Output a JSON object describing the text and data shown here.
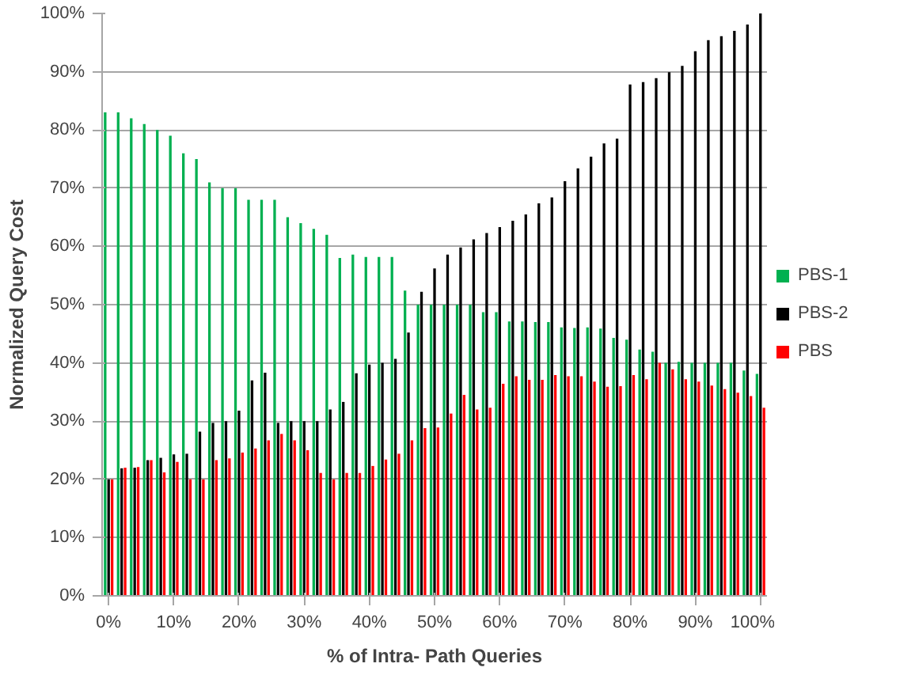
{
  "chart_data": {
    "type": "bar",
    "xlabel": "% of Intra- Path Queries",
    "ylabel": "Normalized Query Cost",
    "categories": [
      "0%",
      null,
      null,
      null,
      null,
      "10%",
      null,
      null,
      null,
      null,
      "20%",
      null,
      null,
      null,
      null,
      "30%",
      null,
      null,
      null,
      null,
      "40%",
      null,
      null,
      null,
      null,
      "50%",
      null,
      null,
      null,
      null,
      "60%",
      null,
      null,
      null,
      null,
      "70%",
      null,
      null,
      null,
      null,
      "80%",
      null,
      null,
      null,
      null,
      "90%",
      null,
      null,
      null,
      null,
      "100%"
    ],
    "series": [
      {
        "name": "PBS-1",
        "color": "#00b050",
        "values": [
          83,
          83,
          82,
          81,
          80,
          79,
          76,
          75,
          71,
          70,
          70,
          68,
          68,
          68,
          65,
          64,
          63,
          62,
          58,
          58.6,
          58.2,
          58.2,
          58.2,
          52.4,
          50,
          50,
          50,
          50,
          50,
          48.7,
          48.7,
          47.1,
          47.1,
          47,
          47,
          46.1,
          46,
          46.1,
          45.9,
          44.3,
          44,
          42.3,
          41.9,
          40,
          40.2,
          40,
          40,
          40,
          40,
          38.7,
          38.1
        ]
      },
      {
        "name": "PBS-2",
        "color": "#000000",
        "values": [
          20,
          21.9,
          22,
          23.3,
          23.7,
          24.3,
          24.4,
          28.2,
          29.7,
          30,
          31.8,
          37,
          38.3,
          29.7,
          30,
          30,
          30,
          32,
          33.3,
          38.2,
          39.7,
          40,
          40.7,
          45.2,
          52.2,
          56.2,
          58.6,
          59.8,
          61.2,
          62.3,
          63.3,
          64.4,
          65.5,
          67.4,
          68.4,
          71.2,
          73.4,
          75.4,
          77.7,
          78.5,
          87.8,
          88.2,
          88.9,
          89.9,
          91,
          93.5,
          95.4,
          96.1,
          97,
          98.1,
          100
        ]
      },
      {
        "name": "PBS",
        "color": "#ff0000",
        "values": [
          20,
          22,
          22.1,
          23.3,
          21.2,
          23,
          20,
          20,
          23.3,
          23.6,
          24.6,
          25.3,
          26.7,
          27.8,
          26.7,
          25,
          21.1,
          20,
          21.1,
          21.1,
          22.3,
          23.4,
          24.4,
          26.7,
          28.8,
          28.9,
          31.3,
          34.5,
          32,
          32.3,
          36.4,
          37.7,
          37.1,
          37.1,
          37.9,
          37.7,
          37.7,
          36.8,
          35.9,
          36,
          37.9,
          37.2,
          40,
          38.9,
          37.2,
          36.8,
          36.1,
          35.5,
          34.9,
          34.3,
          32.3
        ]
      }
    ],
    "ylim": [
      0,
      100
    ],
    "yticks": [
      {
        "value": 0,
        "label": "0%"
      },
      {
        "value": 10,
        "label": "10%"
      },
      {
        "value": 20,
        "label": "20%"
      },
      {
        "value": 30,
        "label": "30%"
      },
      {
        "value": 40,
        "label": "40%"
      },
      {
        "value": 50,
        "label": "50%"
      },
      {
        "value": 60,
        "label": "60%"
      },
      {
        "value": 70,
        "label": "70%"
      },
      {
        "value": 80,
        "label": "80%"
      },
      {
        "value": 90,
        "label": "90%"
      },
      {
        "value": 100,
        "label": "100%"
      }
    ],
    "grid": "y",
    "legend": "right"
  }
}
